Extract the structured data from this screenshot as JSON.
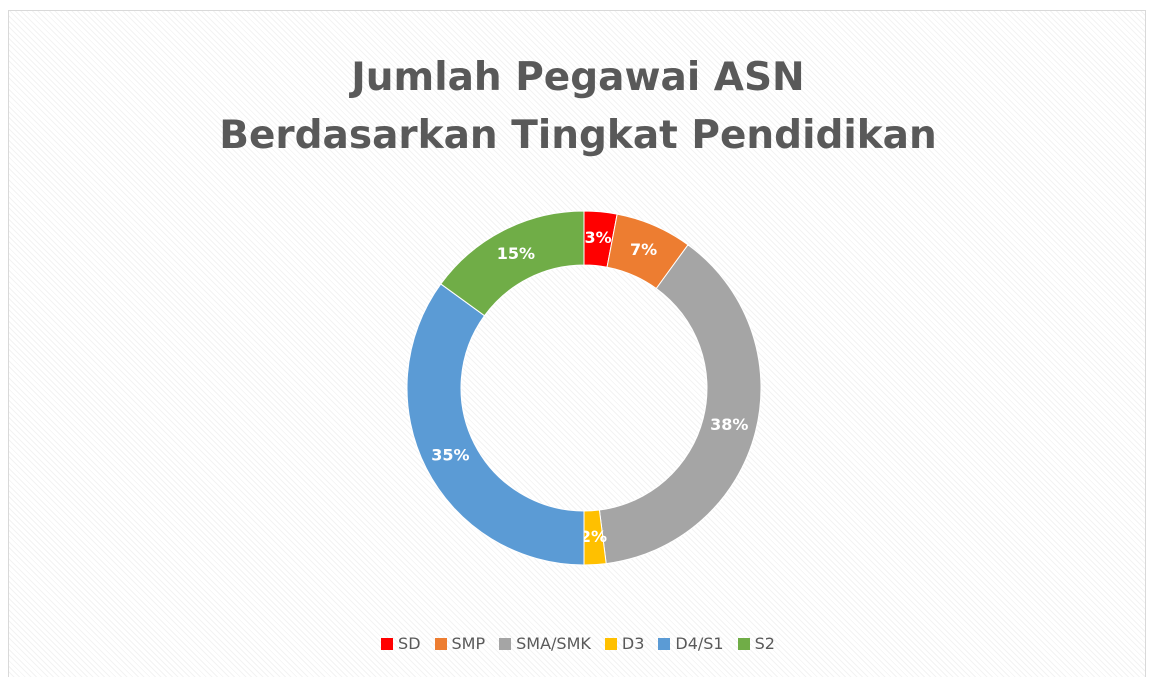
{
  "chart_data": {
    "type": "donut",
    "title": "Jumlah Pegawai ASN Berdasarkan Tingkat Pendidikan",
    "categories": [
      "SD",
      "SMP",
      "SMA/SMK",
      "D3",
      "D4/S1",
      "S2"
    ],
    "values": [
      3,
      7,
      38,
      2,
      35,
      15
    ],
    "value_labels": [
      "3%",
      "7%",
      "38%",
      "2%",
      "35%",
      "15%"
    ],
    "colors": [
      "#ff0000",
      "#ed7d31",
      "#a5a5a5",
      "#ffc000",
      "#5b9bd5",
      "#70ad47"
    ],
    "legend": "bottom"
  }
}
